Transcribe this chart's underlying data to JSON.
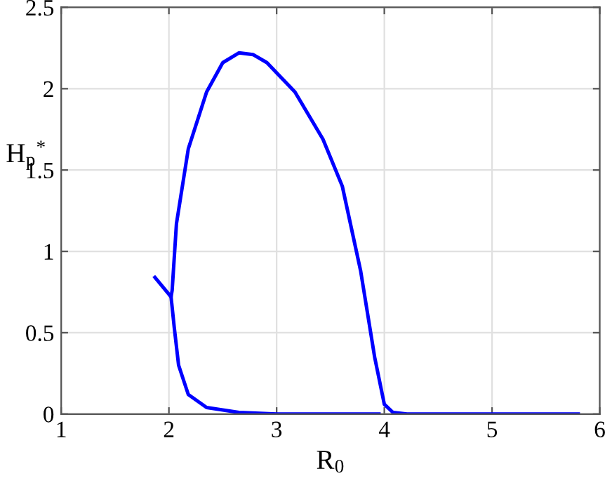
{
  "chart_data": {
    "type": "line",
    "xlabel": "R$_{0}$",
    "ylabel": "H$_{p}$$^{*}$",
    "xlim": [
      1,
      6
    ],
    "ylim": [
      0,
      2.5
    ],
    "xticks": [
      1,
      2,
      3,
      4,
      5,
      6
    ],
    "yticks": [
      0,
      0.5,
      1,
      1.5,
      2,
      2.5
    ],
    "grid": true,
    "marker": "none",
    "line_style": "solid",
    "series": [
      {
        "color": "#0000ff",
        "x": [
          1.87,
          2.02,
          2.03,
          2.07,
          2.18,
          2.35,
          2.5,
          2.65,
          2.78,
          2.91,
          3.17,
          3.43,
          3.61,
          3.78,
          3.91,
          4.0,
          4.08,
          4.21,
          5.8
        ],
        "values": [
          0.84,
          0.72,
          0.76,
          1.17,
          1.63,
          1.98,
          2.16,
          2.22,
          2.21,
          2.16,
          1.98,
          1.69,
          1.4,
          0.88,
          0.35,
          0.06,
          0.01,
          0,
          0
        ]
      },
      {
        "color": "#0000ff",
        "x": [
          2.02,
          2.05,
          2.09,
          2.18,
          2.35,
          2.65,
          3.0,
          3.95
        ],
        "values": [
          0.72,
          0.53,
          0.3,
          0.12,
          0.04,
          0.01,
          0,
          0
        ]
      }
    ]
  }
}
